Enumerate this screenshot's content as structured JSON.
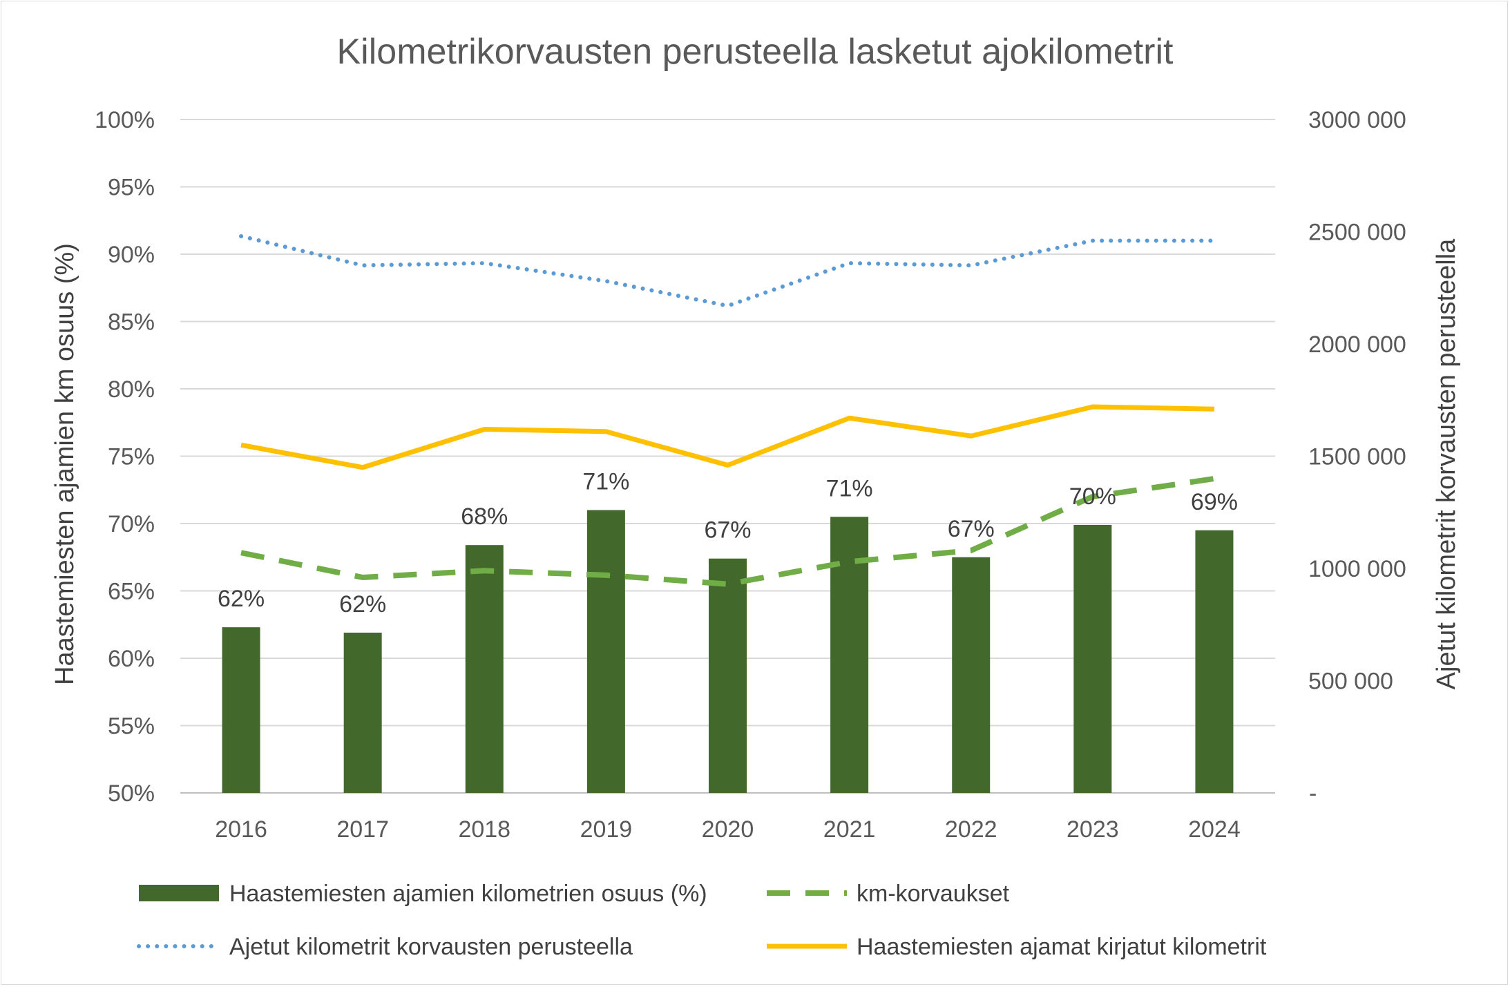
{
  "chart_data": {
    "type": "bar",
    "title": "Kilometrikorvausten perusteella lasketut ajokilometrit",
    "ylabel": "Haastemiesten ajamien km osuus (%)",
    "y2label": "Ajetut kilometrit korvausten perusteella",
    "categories": [
      "2016",
      "2017",
      "2018",
      "2019",
      "2020",
      "2021",
      "2022",
      "2023",
      "2024"
    ],
    "ylim": [
      0.5,
      1.0
    ],
    "yticks": [
      "50%",
      "55%",
      "60%",
      "65%",
      "70%",
      "75%",
      "80%",
      "85%",
      "90%",
      "95%",
      "100%"
    ],
    "y2lim": [
      0,
      3000000
    ],
    "y2ticks": [
      "-",
      "500 000",
      "1000 000",
      "1500 000",
      "2000 000",
      "2500 000",
      "3000 000"
    ],
    "grid": true,
    "legend_position": "bottom",
    "series": [
      {
        "name": "Haastemiesten ajamien kilometrien osuus (%)",
        "type": "bar",
        "axis": "left",
        "color": "#43682b",
        "values": [
          0.623,
          0.619,
          0.684,
          0.71,
          0.674,
          0.705,
          0.675,
          0.699,
          0.695
        ],
        "labels": [
          "62%",
          "62%",
          "68%",
          "71%",
          "67%",
          "71%",
          "67%",
          "70%",
          "69%"
        ]
      },
      {
        "name": "km-korvaukset",
        "type": "line",
        "style": "dashed",
        "axis": "right",
        "color": "#70ad47",
        "values": [
          1070000,
          960000,
          990000,
          970000,
          930000,
          1030000,
          1080000,
          1320000,
          1400000
        ]
      },
      {
        "name": "Ajetut kilometrit korvausten perusteella",
        "type": "line",
        "style": "dotted",
        "axis": "right",
        "color": "#5b9bd5",
        "values": [
          2480000,
          2350000,
          2360000,
          2280000,
          2170000,
          2360000,
          2350000,
          2460000,
          2460000
        ]
      },
      {
        "name": "Haastemiesten ajamat kirjatut kilometrit",
        "type": "line",
        "style": "solid",
        "axis": "right",
        "color": "#ffc000",
        "values": [
          1550000,
          1450000,
          1620000,
          1610000,
          1460000,
          1670000,
          1590000,
          1720000,
          1710000
        ]
      }
    ]
  }
}
